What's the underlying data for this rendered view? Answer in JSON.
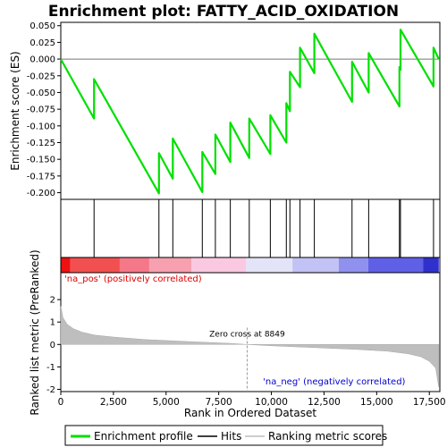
{
  "chart_data": {
    "type": "line",
    "title": "Enrichment plot: FATTY_ACID_OXIDATION",
    "xlabel": "Rank in Ordered Dataset",
    "xlim": [
      0,
      18000
    ],
    "x_ticks": [
      0,
      2500,
      5000,
      7500,
      10000,
      12500,
      15000,
      17500
    ],
    "x_tick_labels": [
      "0",
      "2,500",
      "5,000",
      "7,500",
      "10,000",
      "12,500",
      "15,000",
      "17,500"
    ],
    "enrichment": {
      "ylabel": "Enrichment score (ES)",
      "ylim": [
        -0.21,
        0.055
      ],
      "y_ticks": [
        0.05,
        0.025,
        0.0,
        -0.025,
        -0.05,
        -0.075,
        -0.1,
        -0.125,
        -0.15,
        -0.175,
        -0.2
      ],
      "y_tick_labels": [
        "0.050",
        "0.025",
        "0.000",
        "-0.025",
        "-0.050",
        "-0.075",
        "-0.100",
        "-0.125",
        "-0.150",
        "-0.175",
        "-0.200"
      ],
      "zero_line": 0.0,
      "color": "#00e000",
      "hits": [
        1580,
        4660,
        5320,
        6720,
        7340,
        8050,
        8950,
        9950,
        10710,
        10880,
        11360,
        12040,
        13830,
        14620,
        16080,
        16130,
        17700
      ],
      "es_before_hit": [
        -0.089,
        -0.201,
        -0.179,
        -0.199,
        -0.172,
        -0.154,
        -0.148,
        -0.142,
        -0.125,
        -0.078,
        -0.042,
        -0.021,
        -0.064,
        -0.05,
        -0.071,
        -0.016,
        -0.041
      ],
      "es_after_hit": [
        -0.03,
        -0.141,
        -0.119,
        -0.139,
        -0.113,
        -0.095,
        -0.089,
        -0.084,
        -0.066,
        -0.019,
        0.017,
        0.038,
        -0.004,
        0.009,
        -0.012,
        0.044,
        0.017
      ],
      "start": 0.0,
      "end": 0.0,
      "end_rank": 17950
    },
    "hits_panel": {
      "label": "Hits"
    },
    "ranking": {
      "ylabel": "Ranked list metric (PreRanked)",
      "ylim": [
        -2.1,
        3.2
      ],
      "y_ticks": [
        2,
        1,
        0,
        -1,
        -2
      ],
      "y_tick_labels": [
        "2",
        "1",
        "0",
        "-1",
        "-2"
      ],
      "profile": [
        [
          0,
          1.7
        ],
        [
          100,
          1.2
        ],
        [
          300,
          0.9
        ],
        [
          600,
          0.7
        ],
        [
          1000,
          0.55
        ],
        [
          1600,
          0.42
        ],
        [
          2500,
          0.33
        ],
        [
          4000,
          0.22
        ],
        [
          6000,
          0.13
        ],
        [
          8000,
          0.05
        ],
        [
          8849,
          0.0
        ],
        [
          10000,
          -0.06
        ],
        [
          12000,
          -0.14
        ],
        [
          14000,
          -0.22
        ],
        [
          15500,
          -0.3
        ],
        [
          16500,
          -0.42
        ],
        [
          17100,
          -0.55
        ],
        [
          17500,
          -0.75
        ],
        [
          17800,
          -1.05
        ],
        [
          17950,
          -1.9
        ]
      ],
      "zero_cross_label": "Zero cross at 8849",
      "zero_cross": 8849,
      "pos_label": "'na_pos' (positively correlated)",
      "neg_label": "'na_neg' (negatively correlated)",
      "pos_color": "#dd0000",
      "neg_color": "#0000cc",
      "fill_color": "#bebebe"
    },
    "color_bar": [
      {
        "from": 0,
        "to": 450,
        "color": "#ee1111"
      },
      {
        "from": 450,
        "to": 2800,
        "color": "#f25050"
      },
      {
        "from": 2800,
        "to": 4200,
        "color": "#f47888"
      },
      {
        "from": 4200,
        "to": 6200,
        "color": "#f7a0b0"
      },
      {
        "from": 6200,
        "to": 8800,
        "color": "#fac8e0"
      },
      {
        "from": 8800,
        "to": 11000,
        "color": "#e4e4f8"
      },
      {
        "from": 11000,
        "to": 13200,
        "color": "#c2c2f4"
      },
      {
        "from": 13200,
        "to": 14600,
        "color": "#9090ee"
      },
      {
        "from": 14600,
        "to": 17200,
        "color": "#6060e6"
      },
      {
        "from": 17200,
        "to": 17950,
        "color": "#3030cc"
      }
    ],
    "legend": [
      {
        "label": "Enrichment profile",
        "color": "#00e000",
        "kind": "thick-line"
      },
      {
        "label": "Hits",
        "color": "#000000",
        "kind": "line"
      },
      {
        "label": "Ranking metric scores",
        "color": "#bebebe",
        "kind": "line"
      }
    ]
  }
}
